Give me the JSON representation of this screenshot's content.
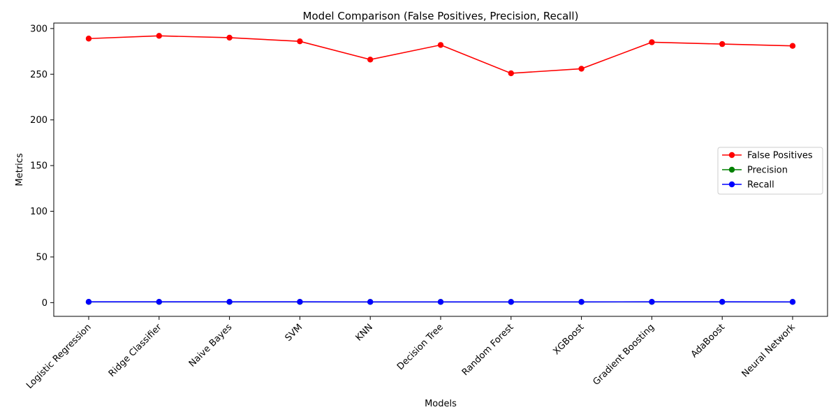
{
  "chart_data": {
    "type": "line",
    "title": "Model Comparison (False Positives, Precision, Recall)",
    "xlabel": "Models",
    "ylabel": "Metrics",
    "categories": [
      "Logistic Regression",
      "Ridge Classifier",
      "Naive Bayes",
      "SVM",
      "KNN",
      "Decision Tree",
      "Random Forest",
      "XGBoost",
      "Gradient Boosting",
      "AdaBoost",
      "Neural Network"
    ],
    "ylim": [
      -15,
      306
    ],
    "yticks": [
      0,
      50,
      100,
      150,
      200,
      250,
      300
    ],
    "grid": false,
    "legend_position": "center-right",
    "series": [
      {
        "name": "False Positives",
        "color": "#ff0000",
        "values": [
          289,
          292,
          290,
          286,
          266,
          282,
          251,
          256,
          285,
          283,
          281
        ]
      },
      {
        "name": "Precision",
        "color": "#008000",
        "values": [
          0.8,
          0.8,
          0.8,
          0.8,
          0.8,
          0.8,
          0.8,
          0.8,
          0.8,
          0.8,
          0.8
        ]
      },
      {
        "name": "Recall",
        "color": "#0000ff",
        "values": [
          0.9,
          0.9,
          0.9,
          0.9,
          0.8,
          0.8,
          0.8,
          0.8,
          0.9,
          0.9,
          0.8
        ]
      }
    ]
  }
}
